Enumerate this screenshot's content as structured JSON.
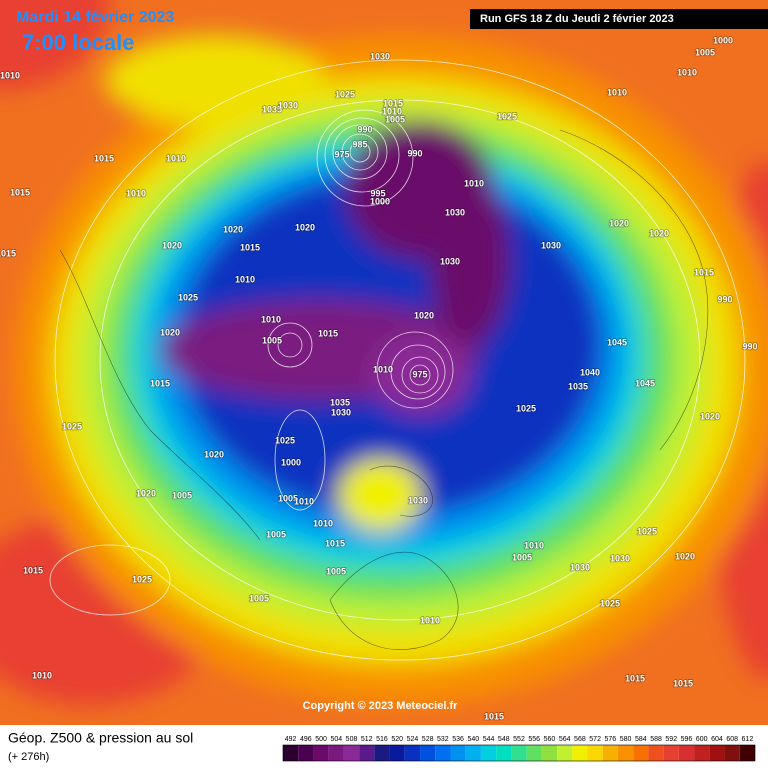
{
  "header": {
    "date": "Mardi 14 février 2023",
    "time": "7:00 locale",
    "run": "Run GFS 18 Z du Jeudi 2 février 2023",
    "copyright": "Copyright © 2023 Meteociel.fr"
  },
  "footer": {
    "title": "Géop. Z500 & pression au sol",
    "lead": "(+ 276h)"
  },
  "colorbar": {
    "ticks": [
      492,
      496,
      500,
      504,
      508,
      512,
      516,
      520,
      524,
      528,
      532,
      536,
      540,
      544,
      548,
      552,
      556,
      560,
      564,
      568,
      572,
      576,
      580,
      584,
      588,
      592,
      596,
      600,
      604,
      608,
      612
    ],
    "colors": [
      "#2b0030",
      "#4b0050",
      "#6a0a6a",
      "#7a1a80",
      "#8a2a96",
      "#5a1a8c",
      "#1a1a80",
      "#0a1aa0",
      "#0a30c0",
      "#0050e0",
      "#0070f0",
      "#0090f0",
      "#00b0f0",
      "#00d0e0",
      "#00e0c0",
      "#30e090",
      "#60e060",
      "#90e040",
      "#c0f030",
      "#f0f000",
      "#f8d800",
      "#f8b000",
      "#f89000",
      "#f87000",
      "#f05020",
      "#e84030",
      "#d83030",
      "#c02020",
      "#a01010",
      "#801010",
      "#400000"
    ]
  },
  "pressure_labels": [
    1030,
    1035,
    1030,
    1025,
    1015,
    1010,
    1005,
    990,
    985,
    975,
    990,
    995,
    1000,
    1030,
    1025,
    1010,
    1010,
    1005,
    1000,
    1010,
    1015,
    1010,
    1015,
    1010,
    1020,
    1020,
    1015,
    1020,
    1010,
    1025,
    1020,
    1015,
    1025,
    1020,
    1020,
    1005,
    1005,
    1010,
    1015,
    1020,
    1030,
    1030,
    1020,
    1020,
    1015,
    990,
    990,
    1045,
    1040,
    1035,
    1045,
    1020,
    1025,
    1020,
    1030,
    1025,
    1010,
    1005,
    1030,
    1025,
    1035,
    1030,
    1025,
    1000,
    1005,
    1010,
    1005,
    1010,
    1015,
    1005,
    1030,
    1010,
    1005,
    1025,
    1015,
    1010,
    1015,
    1015,
    1015,
    1010,
    1015,
    975,
    1010
  ]
}
